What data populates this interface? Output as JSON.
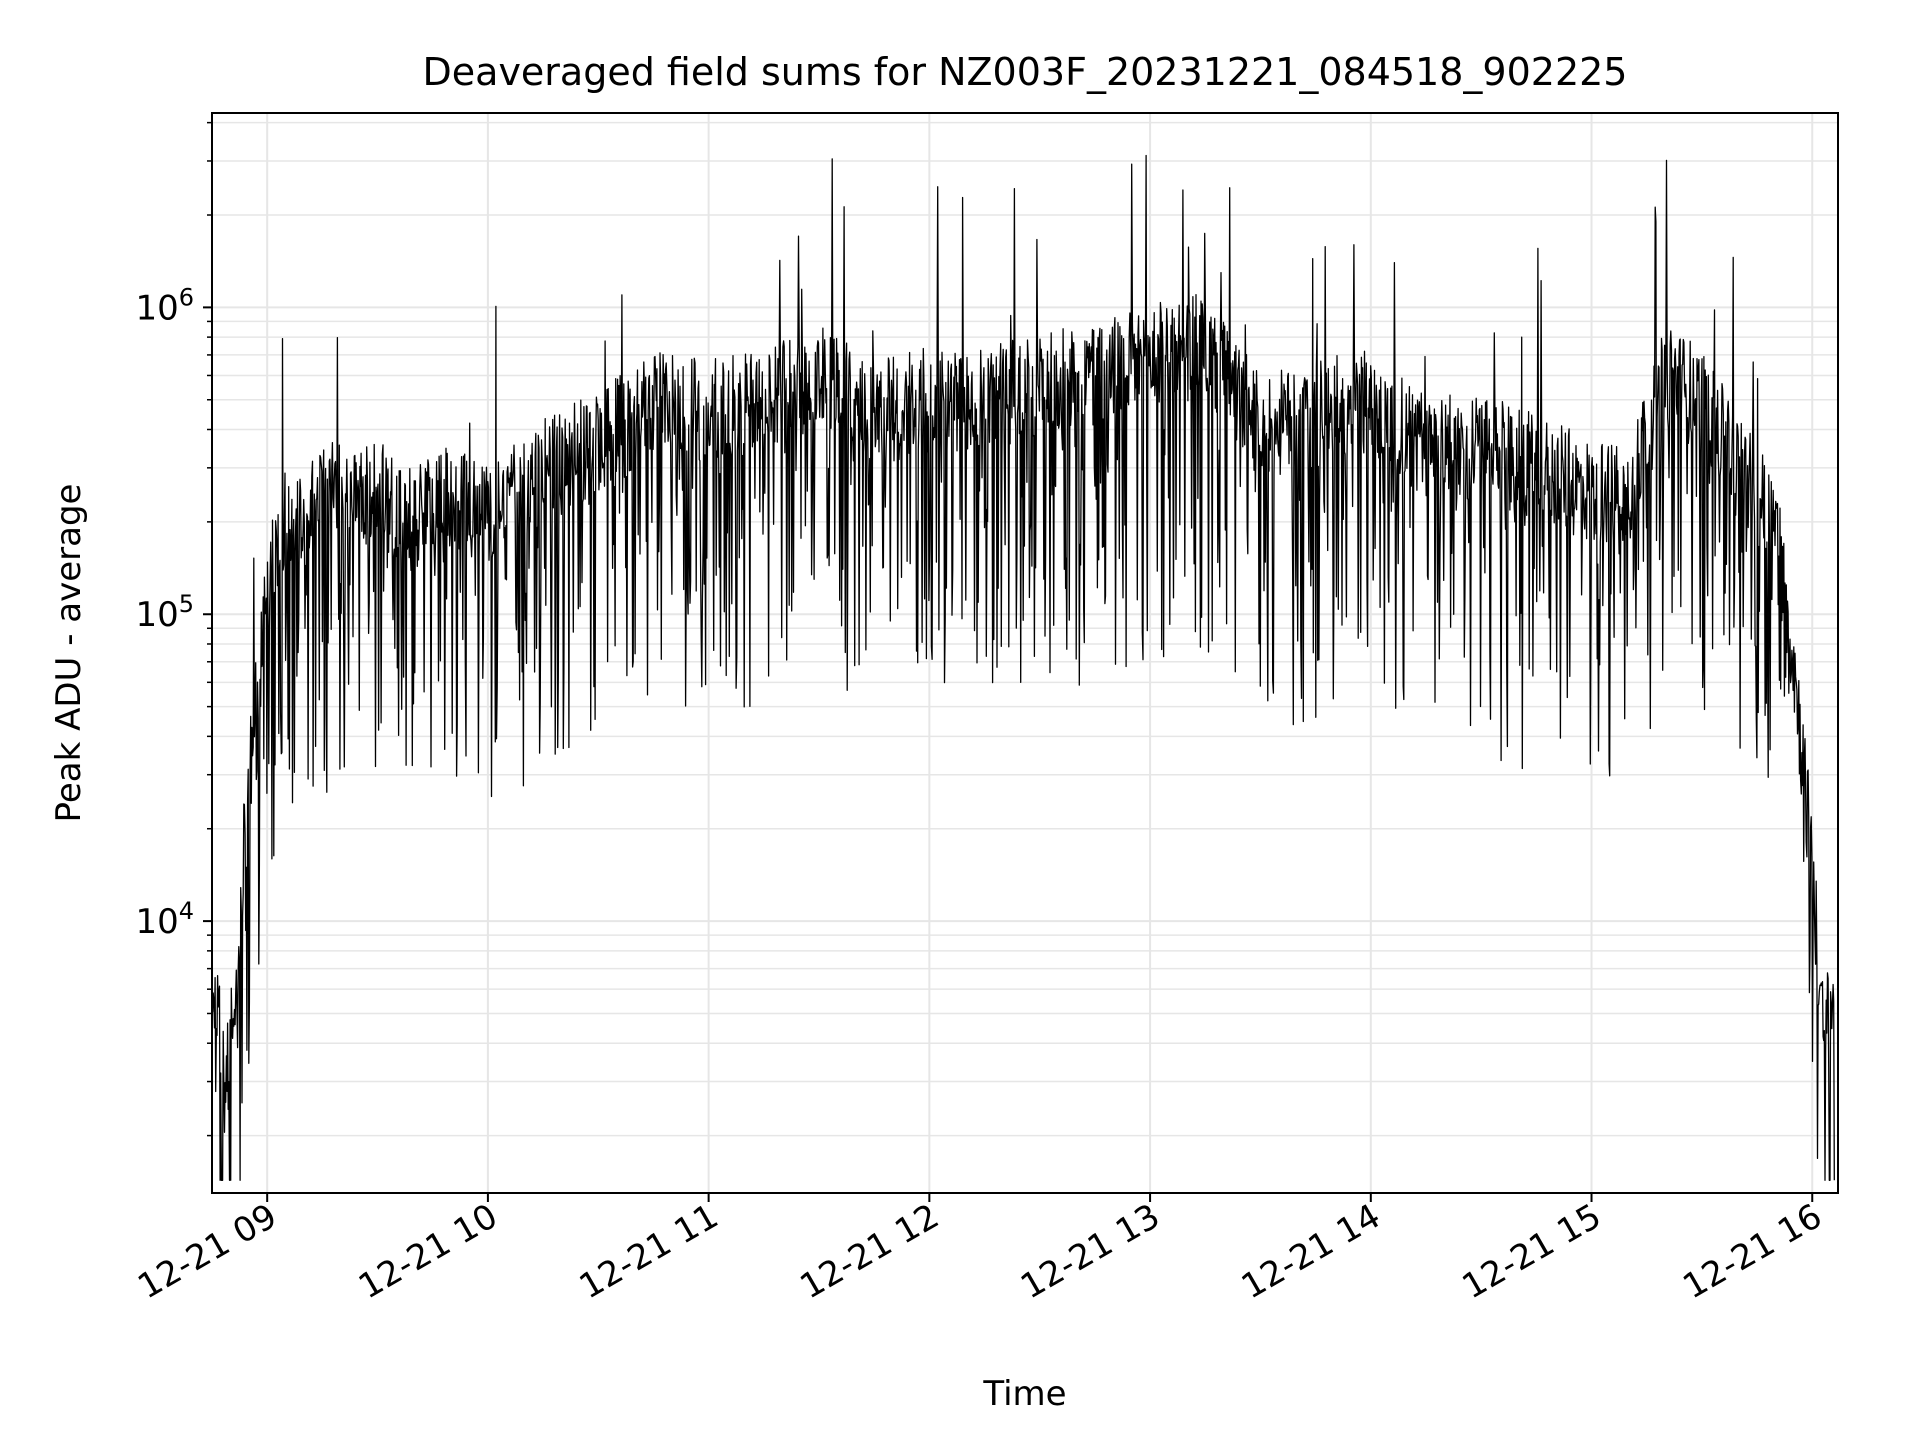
{
  "chart_data": {
    "type": "line",
    "title": "Deaveraged field sums for NZ003F_20231221_084518_902225",
    "xlabel": "Time",
    "ylabel": "Peak ADU - average",
    "y_scale": "log",
    "grid": true,
    "line_color": "#000000",
    "grid_color": "#e6e6e6",
    "x_ticks": [
      "12-21 09",
      "12-21 10",
      "12-21 11",
      "12-21 12",
      "12-21 13",
      "12-21 14",
      "12-21 15",
      "12-21 16"
    ],
    "y_ticks": [
      {
        "base": "10",
        "exp": "4",
        "value": 10000
      },
      {
        "base": "10",
        "exp": "5",
        "value": 100000
      },
      {
        "base": "10",
        "exp": "6",
        "value": 1000000
      }
    ],
    "xlim": [
      "2023-12-21 08:45",
      "2023-12-21 16:07"
    ],
    "ylim": [
      1300,
      4300000
    ],
    "series": [
      {
        "x": [
          "2023-12-21 08:45",
          "2023-12-21 08:48",
          "2023-12-21 08:51",
          "2023-12-21 08:54",
          "2023-12-21 08:57",
          "2023-12-21 09:00",
          "2023-12-21 09:05",
          "2023-12-21 09:10",
          "2023-12-21 09:15",
          "2023-12-21 09:20",
          "2023-12-21 09:30",
          "2023-12-21 09:40",
          "2023-12-21 09:50",
          "2023-12-21 10:00",
          "2023-12-21 10:15",
          "2023-12-21 10:30",
          "2023-12-21 10:45",
          "2023-12-21 11:00",
          "2023-12-21 11:15",
          "2023-12-21 11:30",
          "2023-12-21 11:45",
          "2023-12-21 12:00",
          "2023-12-21 12:15",
          "2023-12-21 12:30",
          "2023-12-21 12:45",
          "2023-12-21 13:00",
          "2023-12-21 13:15",
          "2023-12-21 13:30",
          "2023-12-21 13:45",
          "2023-12-21 14:00",
          "2023-12-21 14:15",
          "2023-12-21 14:30",
          "2023-12-21 14:45",
          "2023-12-21 15:00",
          "2023-12-21 15:10",
          "2023-12-21 15:20",
          "2023-12-21 15:30",
          "2023-12-21 15:40",
          "2023-12-21 15:50",
          "2023-12-21 15:55",
          "2023-12-21 16:00",
          "2023-12-21 16:03",
          "2023-12-21 16:06"
        ],
        "y": [
          6000,
          3500,
          5000,
          20000,
          50000,
          120000,
          200000,
          210000,
          250000,
          240000,
          250000,
          200000,
          250000,
          200000,
          300000,
          350000,
          500000,
          450000,
          500000,
          600000,
          450000,
          500000,
          500000,
          550000,
          600000,
          700000,
          750000,
          400000,
          450000,
          500000,
          350000,
          350000,
          300000,
          250000,
          250000,
          600000,
          500000,
          300000,
          200000,
          70000,
          15000,
          4000,
          6000
        ]
      }
    ]
  }
}
